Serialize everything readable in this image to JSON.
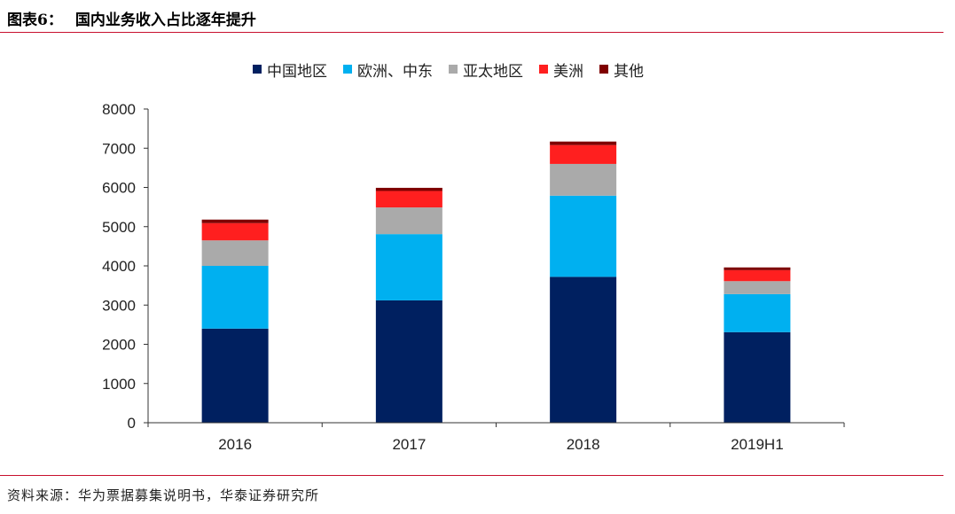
{
  "header": {
    "label": "图表6：",
    "title": "国内业务收入占比逐年提升"
  },
  "source": "资料来源：华为票据募集说明书，华泰证券研究所",
  "chart_data": {
    "type": "bar",
    "stacked": true,
    "categories": [
      "2016",
      "2017",
      "2018",
      "2019H1"
    ],
    "ylim": [
      0,
      8000
    ],
    "yticks": [
      0,
      1000,
      2000,
      3000,
      4000,
      5000,
      6000,
      7000,
      8000
    ],
    "grid": false,
    "legend_position": "top",
    "series": [
      {
        "name": "中国地区",
        "color": "#002060",
        "values": [
          2400,
          3120,
          3720,
          2310
        ]
      },
      {
        "name": "欧洲、中东",
        "color": "#00b0f0",
        "values": [
          1600,
          1690,
          2070,
          970
        ]
      },
      {
        "name": "亚太地区",
        "color": "#aaaaaa",
        "values": [
          650,
          680,
          810,
          330
        ]
      },
      {
        "name": "美洲",
        "color": "#ff1f1f",
        "values": [
          440,
          420,
          480,
          280
        ]
      },
      {
        "name": "其他",
        "color": "#7f0000",
        "values": [
          90,
          80,
          90,
          70
        ]
      }
    ]
  }
}
